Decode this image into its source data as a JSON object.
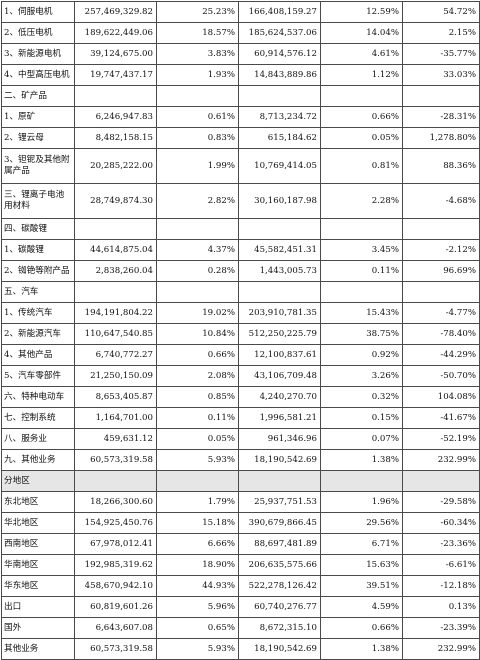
{
  "rows": [
    {
      "cells": [
        "1、伺服电机",
        "257,469,329.82",
        "25.23%",
        "166,408,159.27",
        "12.59%",
        "54.72%"
      ]
    },
    {
      "cells": [
        "2、低压电机",
        "189,622,449.06",
        "18.57%",
        "185,624,537.06",
        "14.04%",
        "2.15%"
      ]
    },
    {
      "cells": [
        "3、新能源电机",
        "39,124,675.00",
        "3.83%",
        "60,914,576.12",
        "4.61%",
        "-35.77%"
      ]
    },
    {
      "cells": [
        "4、中型高压电机",
        "19,747,437.17",
        "1.93%",
        "14,843,889.86",
        "1.12%",
        "33.03%"
      ]
    },
    {
      "cells": [
        "二、矿产品",
        "",
        "",
        "",
        "",
        ""
      ]
    },
    {
      "cells": [
        "1、原矿",
        "6,246,947.83",
        "0.61%",
        "8,713,234.72",
        "0.66%",
        "-28.31%"
      ]
    },
    {
      "cells": [
        "2、锂云母",
        "8,482,158.15",
        "0.83%",
        "615,184.62",
        "0.05%",
        "1,278.80%"
      ]
    },
    {
      "cells": [
        "3、钽铌及其他附属产品",
        "20,285,222.00",
        "1.99%",
        "10,769,414.05",
        "0.81%",
        "88.36%"
      ]
    },
    {
      "cells": [
        "三、锂离子电池用材料",
        "28,749,874.30",
        "2.82%",
        "30,160,187.98",
        "2.28%",
        "-4.68%"
      ]
    },
    {
      "cells": [
        "四、碳酸锂",
        "",
        "",
        "",
        "",
        ""
      ]
    },
    {
      "cells": [
        "1、碳酸锂",
        "44,614,875.04",
        "4.37%",
        "45,582,451.31",
        "3.45%",
        "-2.12%"
      ]
    },
    {
      "cells": [
        "2、铷铯等附产品",
        "2,838,260.04",
        "0.28%",
        "1,443,005.73",
        "0.11%",
        "96.69%"
      ]
    },
    {
      "cells": [
        "五、汽车",
        "",
        "",
        "",
        "",
        ""
      ]
    },
    {
      "cells": [
        "1、传统汽车",
        "194,191,804.22",
        "19.02%",
        "203,910,781.35",
        "15.43%",
        "-4.77%"
      ]
    },
    {
      "cells": [
        "2、新能源汽车",
        "110,647,540.85",
        "10.84%",
        "512,250,225.79",
        "38.75%",
        "-78.40%"
      ]
    },
    {
      "cells": [
        "4、其他产品",
        "6,740,772.27",
        "0.66%",
        "12,100,837.61",
        "0.92%",
        "-44.29%"
      ]
    },
    {
      "cells": [
        "5、汽车零部件",
        "21,250,150.09",
        "2.08%",
        "43,106,709.48",
        "3.26%",
        "-50.70%"
      ]
    },
    {
      "cells": [
        "六、特种电动车",
        "8,653,405.87",
        "0.85%",
        "4,240,270.70",
        "0.32%",
        "104.08%"
      ]
    },
    {
      "cells": [
        "七、控制系统",
        "1,164,701.00",
        "0.11%",
        "1,996,581.21",
        "0.15%",
        "-41.67%"
      ]
    },
    {
      "cells": [
        "八、服务业",
        "459,631.12",
        "0.05%",
        "961,346.96",
        "0.07%",
        "-52.19%"
      ]
    },
    {
      "cells": [
        "九、其他业务",
        "60,573,319.58",
        "5.93%",
        "18,190,542.69",
        "1.38%",
        "232.99%"
      ]
    },
    {
      "cells": [
        "分地区",
        "",
        "",
        "",
        "",
        ""
      ]
    },
    {
      "cells": [
        "东北地区",
        "18,266,300.60",
        "1.79%",
        "25,937,751.53",
        "1.96%",
        "-29.58%"
      ]
    },
    {
      "cells": [
        "华北地区",
        "154,925,450.76",
        "15.18%",
        "390,679,866.45",
        "29.56%",
        "-60.34%"
      ]
    },
    {
      "cells": [
        "西南地区",
        "67,978,012.41",
        "6.66%",
        "88,697,481.89",
        "6.71%",
        "-23.36%"
      ]
    },
    {
      "cells": [
        "华南地区",
        "192,985,319.62",
        "18.90%",
        "206,635,575.66",
        "15.63%",
        "-6.61%"
      ]
    },
    {
      "cells": [
        "华东地区",
        "458,670,942.10",
        "44.93%",
        "522,278,126.42",
        "39.51%",
        "-12.18%"
      ]
    },
    {
      "cells": [
        "出口",
        "60,819,601.26",
        "5.96%",
        "60,740,276.77",
        "4.59%",
        "0.13%"
      ]
    },
    {
      "cells": [
        "国外",
        "6,643,607.08",
        "0.65%",
        "8,672,315.10",
        "0.66%",
        "-23.39%"
      ]
    },
    {
      "cells": [
        "其他业务",
        "60,573,319.58",
        "5.93%",
        "18,190,542.69",
        "1.38%",
        "232.99%"
      ]
    }
  ]
}
